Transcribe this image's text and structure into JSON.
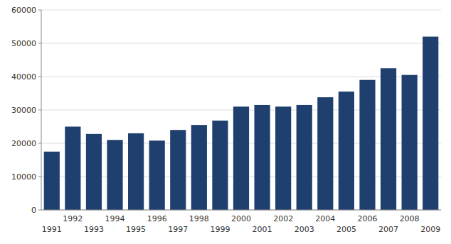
{
  "chart_data": {
    "type": "bar",
    "categories": [
      "1991",
      "1992",
      "1993",
      "1994",
      "1995",
      "1996",
      "1997",
      "1998",
      "1999",
      "2000",
      "2001",
      "2002",
      "2003",
      "2004",
      "2005",
      "2006",
      "2007",
      "2008",
      "2009"
    ],
    "values": [
      17500,
      25000,
      22800,
      21000,
      23000,
      20800,
      24000,
      25500,
      26800,
      31000,
      31500,
      31000,
      31500,
      33800,
      35500,
      39000,
      42500,
      40500,
      52000
    ],
    "color": "#1F3F6E",
    "ylim": [
      0,
      60000
    ],
    "yticks": [
      0,
      10000,
      20000,
      30000,
      40000,
      50000,
      60000
    ],
    "grid": true
  }
}
